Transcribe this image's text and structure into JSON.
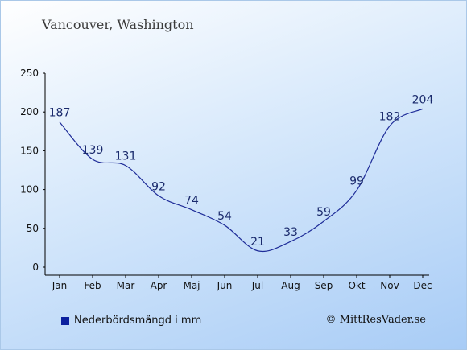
{
  "title": "Vancouver, Washington",
  "legend": {
    "label": "Nederbördsmängd i mm"
  },
  "credit": "© MittResVader.se",
  "colors": {
    "line": "#1f2d99",
    "axis": "#000000",
    "label": "#1a2a6c",
    "swatch": "#0c209e"
  },
  "chart_data": {
    "type": "line",
    "categories": [
      "Jan",
      "Feb",
      "Mar",
      "Apr",
      "Maj",
      "Jun",
      "Jul",
      "Aug",
      "Sep",
      "Okt",
      "Nov",
      "Dec"
    ],
    "series": [
      {
        "name": "Nederbördsmängd i mm",
        "values": [
          187,
          139,
          131,
          92,
          74,
          54,
          21,
          33,
          59,
          99,
          182,
          204
        ]
      }
    ],
    "yticks": [
      0,
      50,
      100,
      150,
      200,
      250
    ],
    "ylim": [
      0,
      250
    ],
    "grid": false,
    "legend_position": "bottom-left"
  }
}
